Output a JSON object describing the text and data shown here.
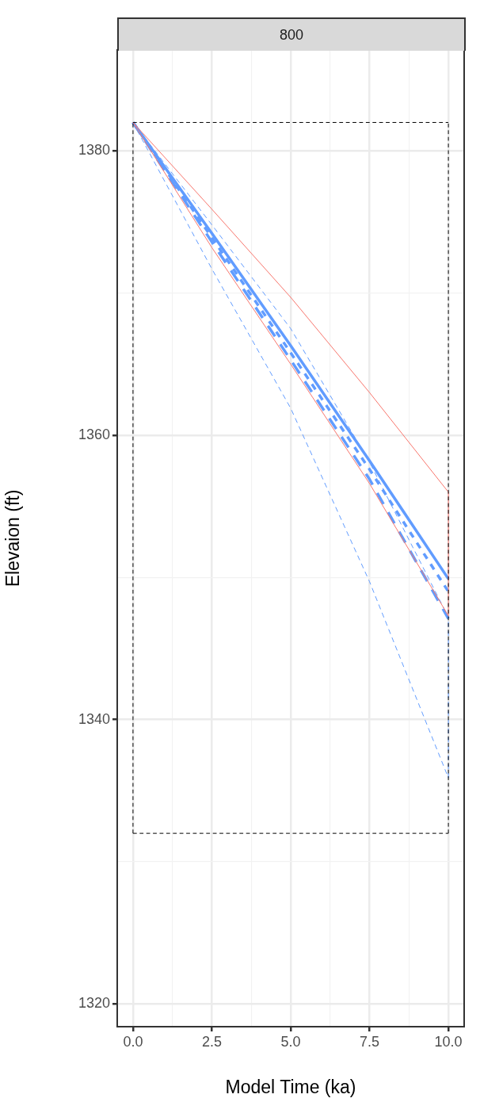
{
  "chart_data": {
    "type": "line",
    "title": "800",
    "xlabel": "Model Time (ka)",
    "ylabel": "Elevaion (ft)",
    "xlim": [
      -0.5,
      10.5
    ],
    "ylim": [
      1318.4,
      1387.1
    ],
    "xticks": [
      {
        "value": 0,
        "label": "0.0"
      },
      {
        "value": 1.25,
        "label": null
      },
      {
        "value": 2.5,
        "label": "2.5"
      },
      {
        "value": 3.75,
        "label": null
      },
      {
        "value": 5,
        "label": "5.0"
      },
      {
        "value": 6.25,
        "label": null
      },
      {
        "value": 7.5,
        "label": "7.5"
      },
      {
        "value": 8.75,
        "label": null
      },
      {
        "value": 10,
        "label": "10.0"
      }
    ],
    "yticks": [
      1320,
      {
        "value": 1330,
        "label": null
      },
      1340,
      {
        "value": 1350,
        "label": null
      },
      1360,
      {
        "value": 1370,
        "label": null
      },
      1380
    ],
    "grid": true,
    "legend": false,
    "marker": "none",
    "series": [
      {
        "color": "#000000",
        "line_style": "dashed",
        "x": [
          0,
          10
        ],
        "values": [
          1382,
          1382
        ]
      },
      {
        "color": "#000000",
        "line_style": "dashed",
        "x": [
          0,
          10
        ],
        "values": [
          1332,
          1332
        ]
      },
      {
        "color": "#000000",
        "line_style": "dashed",
        "x": [
          0,
          0
        ],
        "values": [
          1332,
          1382
        ]
      },
      {
        "color": "#000000",
        "line_style": "dashed",
        "x": [
          10,
          10
        ],
        "values": [
          1332,
          1382
        ]
      },
      {
        "color": "#f8766d",
        "line_style": "solid",
        "x": [
          0,
          2.5,
          5,
          7.5,
          10
        ],
        "values": [
          1382,
          1375.9,
          1369.7,
          1363.0,
          1356.0
        ]
      },
      {
        "color": "#f8766d",
        "line_style": "solid",
        "x": [
          0,
          2.5,
          5,
          7.5,
          10
        ],
        "values": [
          1382,
          1373.2,
          1365.0,
          1356.6,
          1347.3
        ]
      },
      {
        "color": "#f8766d",
        "line_style": "solid",
        "x": [
          10,
          10
        ],
        "values": [
          1347.3,
          1356.0
        ]
      },
      {
        "color": "#619cff",
        "line_style": "dashed",
        "x": [
          0,
          2.5,
          5,
          7.5,
          10
        ],
        "values": [
          1382,
          1374.8,
          1367.5,
          1358.1,
          1347.2
        ]
      },
      {
        "color": "#619cff",
        "line_style": "dashed",
        "x": [
          0,
          2.5,
          5,
          7.5,
          10
        ],
        "values": [
          1382,
          1371.7,
          1361.9,
          1349.7,
          1335.9
        ]
      },
      {
        "color": "#619cff",
        "line_style": "dashed",
        "x": [
          10,
          10
        ],
        "values": [
          1335.9,
          1347.2
        ]
      },
      {
        "color": "#619cff",
        "line_style": "solid",
        "x": [
          0,
          2.5,
          5,
          7.5,
          10
        ],
        "values": [
          1382,
          1374.2,
          1366.3,
          1358.2,
          1349.9
        ]
      },
      {
        "color": "#619cff",
        "line_style": "dotted",
        "x": [
          0,
          2.5,
          5,
          7.5,
          10
        ],
        "values": [
          1382,
          1373.9,
          1365.8,
          1357.6,
          1349.0
        ]
      },
      {
        "color": "#619cff",
        "line_style": "dashed",
        "x": [
          0,
          2.5,
          5,
          7.5,
          10
        ],
        "values": [
          1382,
          1373.6,
          1365.3,
          1356.9,
          1347.1
        ]
      }
    ]
  }
}
